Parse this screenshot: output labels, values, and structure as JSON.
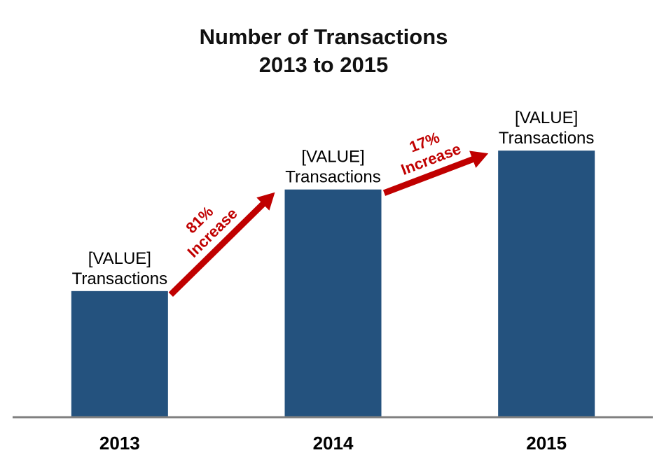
{
  "chart_data": {
    "type": "bar",
    "title_lines": [
      "Number of Transactions",
      "2013 to 2015"
    ],
    "categories": [
      "2013",
      "2014",
      "2015"
    ],
    "values": [
      1.0,
      1.81,
      2.12
    ],
    "value_labels": [
      [
        "[VALUE]",
        "Transactions"
      ],
      [
        "[VALUE]",
        "Transactions"
      ],
      [
        "[VALUE]",
        "Transactions"
      ]
    ],
    "ylim": [
      0,
      2.4
    ],
    "grid": false,
    "xlabel": "",
    "ylabel": "",
    "annotations": [
      {
        "from": 0,
        "to": 1,
        "lines": [
          "81%",
          "Increase"
        ]
      },
      {
        "from": 1,
        "to": 2,
        "lines": [
          "17%",
          "Increase"
        ]
      }
    ],
    "colors": {
      "bar": "#24527e",
      "axis": "#808080",
      "arrow": "#c00000",
      "annotation_text": "#c00000"
    }
  }
}
